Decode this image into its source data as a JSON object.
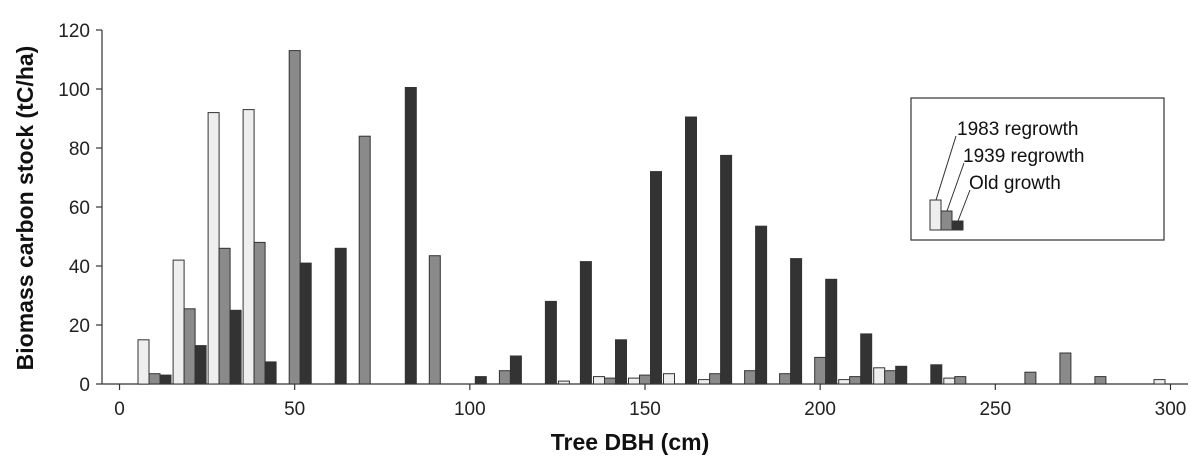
{
  "chart_data": {
    "type": "bar",
    "title": "",
    "xlabel": "Tree DBH (cm)",
    "ylabel": "Biomass carbon stock (tC/ha)",
    "xlim": [
      -5,
      305
    ],
    "ylim": [
      0,
      120
    ],
    "xticks": [
      0,
      50,
      100,
      150,
      200,
      250,
      300
    ],
    "yticks": [
      0,
      20,
      40,
      60,
      80,
      100,
      120
    ],
    "grid": false,
    "legend_position": "right",
    "colors": {
      "1983 regrowth": "#eeeeee",
      "1939 regrowth": "#8a8a8a",
      "Old growth": "#333333"
    },
    "x": [
      10,
      20,
      30,
      40,
      50,
      60,
      70,
      80,
      90,
      100,
      110,
      120,
      130,
      140,
      150,
      160,
      170,
      180,
      190,
      200,
      210,
      220,
      230,
      240,
      250,
      260,
      270,
      280,
      290,
      300
    ],
    "series": [
      {
        "name": "1983 regrowth",
        "values": [
          15,
          42,
          92,
          93,
          0,
          0,
          0,
          0,
          0,
          0,
          0,
          0,
          1,
          2.5,
          2,
          3.5,
          1.5,
          0,
          0,
          0,
          1.5,
          5.5,
          0,
          2,
          0,
          0,
          0,
          0,
          0,
          1.5
        ]
      },
      {
        "name": "1939 regrowth",
        "values": [
          3.5,
          25.5,
          46,
          48,
          113,
          0,
          84,
          0,
          43.5,
          0,
          4.5,
          0,
          0,
          2,
          3,
          0,
          3.5,
          4.5,
          3.5,
          9,
          2.5,
          4.5,
          0,
          2.5,
          0,
          4,
          10.5,
          2.5,
          0,
          0
        ]
      },
      {
        "name": "Old growth",
        "values": [
          3,
          13,
          25,
          7.5,
          41,
          46,
          0,
          100.5,
          0,
          2.5,
          9.5,
          28,
          41.5,
          15,
          72,
          90.5,
          77.5,
          53.5,
          42.5,
          35.5,
          17,
          6,
          6.5,
          0,
          0,
          0,
          0,
          0,
          0,
          0
        ]
      }
    ]
  }
}
